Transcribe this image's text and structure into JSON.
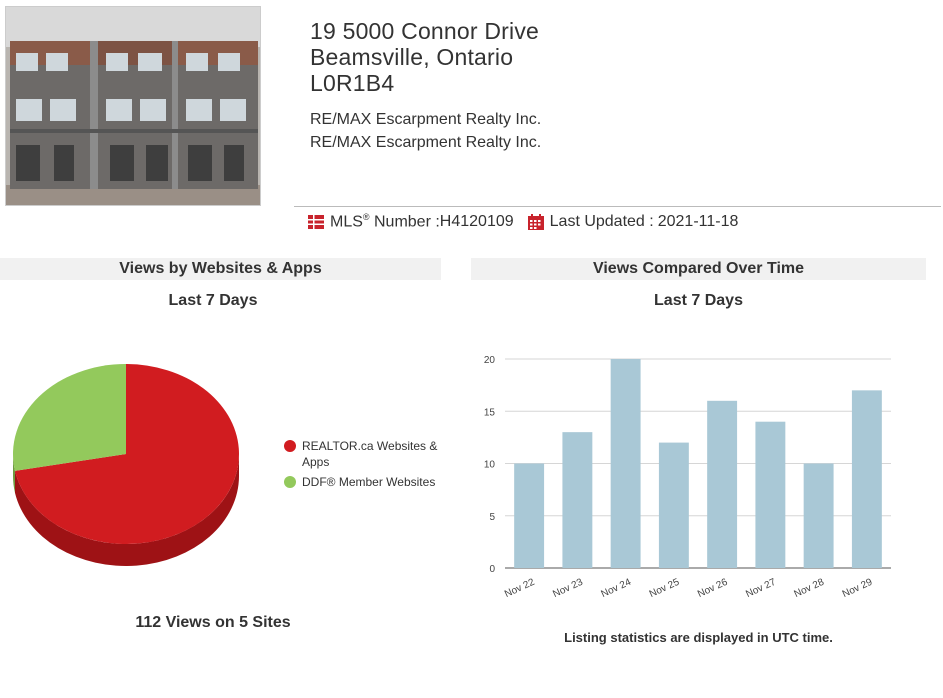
{
  "listing": {
    "address_line1": "19 5000 Connor Drive",
    "address_line2": "Beamsville, Ontario",
    "postal_code": "L0R1B4",
    "brokerage_1": "RE/MAX Escarpment Realty Inc.",
    "brokerage_2": "RE/MAX Escarpment Realty Inc.",
    "mls_label": "MLS",
    "mls_reg": "®",
    "mls_label_suffix": " Number : ",
    "mls_number": "H4120109",
    "updated_label": "Last Updated : ",
    "updated_date": "2021-11-18"
  },
  "pie_panel": {
    "title": "Views by Websites & Apps",
    "subtitle": "Last 7 Days",
    "summary": "112 Views on 5 Sites"
  },
  "bar_panel": {
    "title": "Views Compared Over Time",
    "subtitle": "Last 7 Days",
    "note": "Listing statistics are displayed in UTC time."
  },
  "colors": {
    "red": "#d11c20",
    "red_dark": "#9e1215",
    "green": "#93c95c",
    "bar": "#a9c8d6",
    "icon_red": "#c8232c"
  },
  "chart_data": [
    {
      "type": "pie",
      "labels": [
        "REALTOR.ca Websites & Apps",
        "DDF® Member Websites"
      ],
      "values": [
        72,
        28
      ],
      "legend_position": "right"
    },
    {
      "type": "bar",
      "categories": [
        "Nov 22",
        "Nov 23",
        "Nov 24",
        "Nov 25",
        "Nov 26",
        "Nov 27",
        "Nov 28",
        "Nov 29"
      ],
      "values": [
        10,
        13,
        20,
        12,
        16,
        14,
        10,
        17
      ],
      "ylim": [
        0,
        20
      ],
      "yticks": [
        0,
        5,
        10,
        15,
        20
      ],
      "grid": true
    }
  ]
}
